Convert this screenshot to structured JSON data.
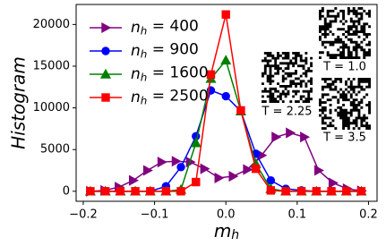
{
  "chart_data": {
    "type": "line",
    "xlabel": "m_h",
    "ylabel": "Histogram",
    "xlim": [
      -0.21,
      0.212
    ],
    "ylim": [
      -1200,
      22400
    ],
    "xticks": [
      {
        "value": -0.2,
        "label": "−0.2"
      },
      {
        "value": -0.1,
        "label": "−0.1"
      },
      {
        "value": 0,
        "label": "0.0"
      },
      {
        "value": 0.1,
        "label": "0.1"
      },
      {
        "value": 0.2,
        "label": "0.2"
      }
    ],
    "yticks": [
      0,
      5000,
      10000,
      15000,
      20000
    ],
    "grid": false,
    "legend": "upper left",
    "series": [
      {
        "name": "n_h = 400",
        "color": "#800080",
        "marker": "triangle-right",
        "x": [
          -0.19,
          -0.17,
          -0.15,
          -0.13,
          -0.11,
          -0.09,
          -0.07,
          -0.05,
          -0.03,
          -0.01,
          0.01,
          0.03,
          0.05,
          0.07,
          0.09,
          0.11,
          0.13,
          0.15,
          0.17,
          0.19
        ],
        "values": [
          0,
          100,
          500,
          1300,
          2500,
          3500,
          3600,
          3500,
          2700,
          1600,
          1800,
          2600,
          4300,
          6500,
          7000,
          6500,
          2500,
          1000,
          300,
          50
        ]
      },
      {
        "name": "n_h = 900",
        "color": "#0000ff",
        "marker": "circle",
        "x": [
          -0.19,
          -0.169,
          -0.148,
          -0.127,
          -0.106,
          -0.084,
          -0.063,
          -0.042,
          -0.021,
          0,
          0.021,
          0.042,
          0.063,
          0.084,
          0.106,
          0.127,
          0.148,
          0.169,
          0.19
        ],
        "values": [
          0,
          0,
          0,
          0,
          0,
          600,
          2900,
          6600,
          12100,
          11400,
          9600,
          4500,
          1300,
          300,
          100,
          0,
          0,
          0,
          0
        ]
      },
      {
        "name": "n_h = 1600",
        "color": "#008000",
        "marker": "triangle-up",
        "x": [
          -0.19,
          -0.169,
          -0.148,
          -0.127,
          -0.106,
          -0.084,
          -0.063,
          -0.042,
          -0.021,
          0,
          0.021,
          0.042,
          0.063,
          0.084,
          0.106,
          0.127,
          0.148,
          0.169,
          0.19
        ],
        "values": [
          0,
          0,
          0,
          0,
          0,
          0,
          200,
          5800,
          13500,
          15700,
          9600,
          3300,
          300,
          0,
          0,
          0,
          0,
          0,
          0
        ]
      },
      {
        "name": "n_h = 2500",
        "color": "#ff0000",
        "marker": "square",
        "x": [
          -0.19,
          -0.169,
          -0.148,
          -0.127,
          -0.106,
          -0.084,
          -0.063,
          -0.042,
          -0.021,
          0,
          0.021,
          0.042,
          0.063,
          0.084,
          0.106,
          0.127,
          0.148,
          0.169,
          0.19
        ],
        "values": [
          0,
          0,
          0,
          0,
          0,
          0,
          0,
          1100,
          14000,
          21200,
          9700,
          2700,
          100,
          0,
          0,
          0,
          0,
          0,
          0
        ]
      }
    ],
    "annotations": [
      "T = 1.0",
      "T = 2.25",
      "T = 3.5"
    ]
  }
}
